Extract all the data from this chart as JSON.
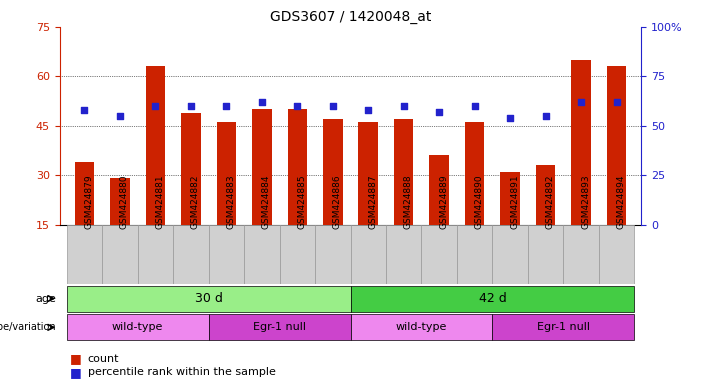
{
  "title": "GDS3607 / 1420048_at",
  "samples": [
    "GSM424879",
    "GSM424880",
    "GSM424881",
    "GSM424882",
    "GSM424883",
    "GSM424884",
    "GSM424885",
    "GSM424886",
    "GSM424887",
    "GSM424888",
    "GSM424889",
    "GSM424890",
    "GSM424891",
    "GSM424892",
    "GSM424893",
    "GSM424894"
  ],
  "counts": [
    34,
    29,
    63,
    49,
    46,
    50,
    50,
    47,
    46,
    47,
    36,
    46,
    31,
    33,
    65,
    63
  ],
  "percentiles": [
    58,
    55,
    60,
    60,
    60,
    62,
    60,
    60,
    58,
    60,
    57,
    60,
    54,
    55,
    62,
    62
  ],
  "ylim_left": [
    15,
    75
  ],
  "ylim_right": [
    0,
    100
  ],
  "yticks_left": [
    15,
    30,
    45,
    60,
    75
  ],
  "yticks_right": [
    0,
    25,
    50,
    75,
    100
  ],
  "bar_color": "#cc2200",
  "dot_color": "#2222cc",
  "axis_color_left": "#cc2200",
  "axis_color_right": "#2222cc",
  "age_30d_color": "#99ee88",
  "age_42d_color": "#44cc44",
  "genotype_wt_color": "#ee88ee",
  "genotype_egr_color": "#cc44cc",
  "age_groups": [
    {
      "label": "30 d",
      "start": 0,
      "end": 8,
      "color_key": "age_30d_color"
    },
    {
      "label": "42 d",
      "start": 8,
      "end": 16,
      "color_key": "age_42d_color"
    }
  ],
  "genotype_groups": [
    {
      "label": "wild-type",
      "start": 0,
      "end": 4,
      "color": "#ee88ee"
    },
    {
      "label": "Egr-1 null",
      "start": 4,
      "end": 8,
      "color": "#cc44cc"
    },
    {
      "label": "wild-type",
      "start": 8,
      "end": 12,
      "color": "#ee88ee"
    },
    {
      "label": "Egr-1 null",
      "start": 12,
      "end": 16,
      "color": "#cc44cc"
    }
  ],
  "legend_count_color": "#cc2200",
  "legend_pct_color": "#2222cc",
  "age_label": "age",
  "genotype_label": "genotype/variation",
  "legend_count_text": "count",
  "legend_pct_text": "percentile rank within the sample",
  "xtick_bg": "#d0d0d0"
}
